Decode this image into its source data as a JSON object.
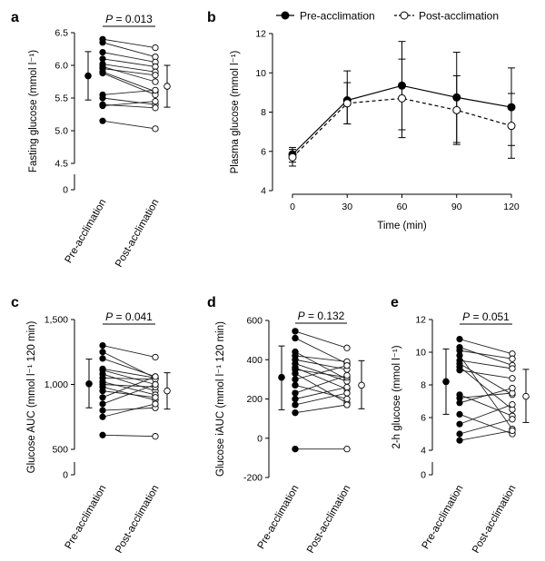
{
  "chart_data": [
    {
      "panel": "a",
      "type": "scatter",
      "title": "",
      "ylabel": "Fasting glucose (mmol l⁻¹)",
      "categories": [
        "Pre-acclimation",
        "Post-acclimation"
      ],
      "ylim": [
        0,
        6.5
      ],
      "yticks": [
        "0",
        "4.5",
        "5.0",
        "5.5",
        "6.0",
        "6.5"
      ],
      "ytick_values": [
        0,
        4.5,
        5.0,
        5.5,
        6.0,
        6.5
      ],
      "p_value": "P = 0.013",
      "pairs": [
        [
          6.4,
          6.27
        ],
        [
          6.35,
          6.13
        ],
        [
          6.2,
          6.05
        ],
        [
          6.1,
          5.98
        ],
        [
          6.02,
          5.9
        ],
        [
          5.98,
          5.75
        ],
        [
          5.95,
          5.85
        ],
        [
          5.9,
          5.6
        ],
        [
          5.88,
          5.55
        ],
        [
          5.55,
          5.62
        ],
        [
          5.5,
          5.4
        ],
        [
          5.4,
          5.35
        ],
        [
          5.38,
          5.45
        ],
        [
          5.15,
          5.03
        ]
      ],
      "summary": {
        "pre": {
          "mean": 5.84,
          "low": 5.47,
          "high": 6.21
        },
        "post": {
          "mean": 5.68,
          "low": 5.36,
          "high": 6.0
        }
      }
    },
    {
      "panel": "b",
      "type": "line",
      "title": "",
      "xlabel": "Time (min)",
      "ylabel": "Plasma glucose (mmol l⁻¹)",
      "x": [
        0,
        30,
        60,
        90,
        120
      ],
      "xticks": [
        "0",
        "30",
        "60",
        "90",
        "120"
      ],
      "ylim": [
        4,
        12
      ],
      "yticks": [
        "4",
        "6",
        "8",
        "10",
        "12"
      ],
      "ytick_values": [
        4,
        6,
        8,
        10,
        12
      ],
      "series": [
        {
          "name": "Pre-acclimation",
          "values": [
            5.85,
            8.6,
            9.35,
            8.75,
            8.25
          ],
          "err_low": [
            5.45,
            7.4,
            7.1,
            6.45,
            6.3
          ],
          "err_high": [
            6.2,
            10.1,
            11.6,
            11.05,
            10.25
          ]
        },
        {
          "name": "Post-acclimation",
          "values": [
            5.7,
            8.45,
            8.7,
            8.1,
            7.3
          ],
          "err_low": [
            5.25,
            7.4,
            6.7,
            6.35,
            5.65
          ],
          "err_high": [
            6.1,
            9.5,
            10.7,
            9.85,
            8.95
          ]
        }
      ],
      "legend": [
        "Pre-acclimation",
        "Post-acclimation"
      ]
    },
    {
      "panel": "c",
      "type": "scatter",
      "title": "",
      "ylabel": "Glucose AUC (mmol l⁻¹ 120 min)",
      "categories": [
        "Pre-acclimation",
        "Post-acclimation"
      ],
      "ylim": [
        0,
        1500
      ],
      "yticks": [
        "0",
        "500",
        "1,000",
        "1,500"
      ],
      "ytick_values": [
        0,
        500,
        1000,
        1500
      ],
      "p_value": "P = 0.041",
      "pairs": [
        [
          1300,
          1210
        ],
        [
          1250,
          1050
        ],
        [
          1200,
          1060
        ],
        [
          1120,
          1050
        ],
        [
          1110,
          1000
        ],
        [
          1080,
          950
        ],
        [
          1050,
          1040
        ],
        [
          1020,
          920
        ],
        [
          1000,
          980
        ],
        [
          980,
          880
        ],
        [
          950,
          900
        ],
        [
          900,
          1060
        ],
        [
          850,
          1000
        ],
        [
          800,
          820
        ],
        [
          750,
          850
        ],
        [
          610,
          600
        ]
      ],
      "summary": {
        "pre": {
          "mean": 1005,
          "low": 820,
          "high": 1195
        },
        "post": {
          "mean": 950,
          "low": 810,
          "high": 1090
        }
      }
    },
    {
      "panel": "d",
      "type": "scatter",
      "title": "",
      "ylabel": "Glucose iAUC (mmol l⁻¹ 120 min)",
      "categories": [
        "Pre-acclimation",
        "Post-acclimation"
      ],
      "ylim": [
        -200,
        600
      ],
      "yticks": [
        "-200",
        "0",
        "200",
        "400",
        "600"
      ],
      "ytick_values": [
        -200,
        0,
        200,
        400,
        600
      ],
      "p_value": "P = 0.132",
      "pairs": [
        [
          545,
          460
        ],
        [
          510,
          380
        ],
        [
          440,
          300
        ],
        [
          420,
          390
        ],
        [
          400,
          350
        ],
        [
          380,
          290
        ],
        [
          360,
          250
        ],
        [
          350,
          310
        ],
        [
          330,
          180
        ],
        [
          300,
          370
        ],
        [
          270,
          200
        ],
        [
          230,
          320
        ],
        [
          200,
          260
        ],
        [
          170,
          230
        ],
        [
          130,
          170
        ],
        [
          -55,
          -55
        ]
      ],
      "summary": {
        "pre": {
          "mean": 310,
          "low": 145,
          "high": 470
        },
        "post": {
          "mean": 270,
          "low": 150,
          "high": 395
        }
      }
    },
    {
      "panel": "e",
      "type": "scatter",
      "title": "",
      "ylabel": "2-h glucose (mmol l⁻¹)",
      "categories": [
        "Pre-acclimation",
        "Post-acclimation"
      ],
      "ylim": [
        0,
        12
      ],
      "yticks": [
        "0",
        "4",
        "6",
        "8",
        "10",
        "12"
      ],
      "ytick_values": [
        0,
        4,
        6,
        8,
        10,
        12
      ],
      "p_value": "P = 0.051",
      "pairs": [
        [
          10.8,
          9.9
        ],
        [
          10.3,
          9.2
        ],
        [
          10.1,
          9.6
        ],
        [
          9.8,
          5.3
        ],
        [
          9.5,
          9.0
        ],
        [
          9.3,
          7.4
        ],
        [
          9.1,
          6.5
        ],
        [
          8.9,
          8.4
        ],
        [
          7.4,
          6.1
        ],
        [
          7.2,
          7.5
        ],
        [
          6.9,
          7.8
        ],
        [
          6.2,
          5.0
        ],
        [
          5.6,
          6.8
        ],
        [
          5.0,
          5.9
        ],
        [
          4.6,
          5.2
        ]
      ],
      "summary": {
        "pre": {
          "mean": 8.2,
          "low": 6.2,
          "high": 10.2
        },
        "post": {
          "mean": 7.3,
          "low": 5.7,
          "high": 8.95
        }
      }
    }
  ]
}
